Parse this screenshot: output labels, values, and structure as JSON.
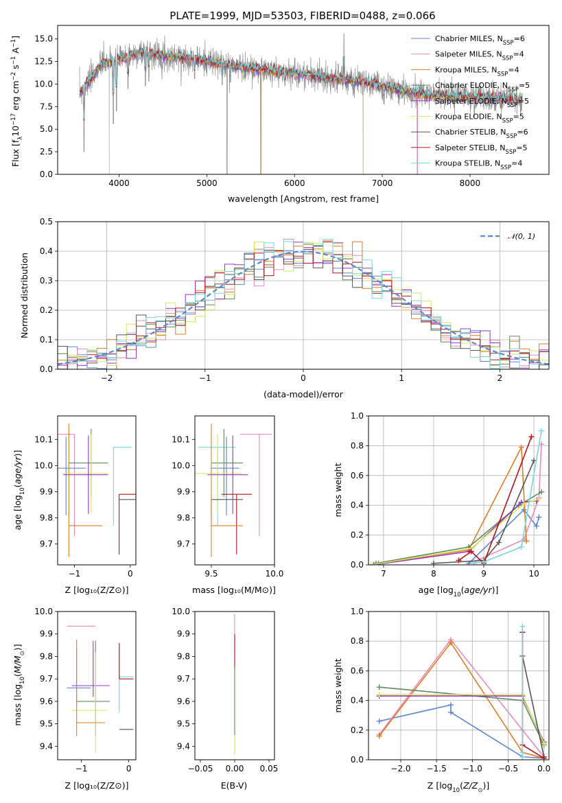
{
  "figure_title": "PLATE=1999, MJD=53503, FIBERID=0488, z=0.066",
  "colors": {
    "Chabrier MILES": "#5b86d6",
    "Salpeter MILES": "#e58bbd",
    "Kroupa MILES": "#e07b1f",
    "Chabrier ELODIE": "#5d8a5a",
    "Salpeter ELODIE": "#9a30c8",
    "Kroupa ELODIE": "#d8e65a",
    "Chabrier STELIB": "#555555",
    "Salpeter STELIB": "#b01418",
    "Kroupa STELIB": "#76d6df",
    "spectrum": "#8a8a8a",
    "normal": "#5b86d6"
  },
  "chart_data": [
    {
      "id": "spectrum",
      "type": "line",
      "title": "PLATE=1999, MJD=53503, FIBERID=0488, z=0.066",
      "xlabel": "wavelength [Angstrom, rest frame]",
      "ylabel": "Flux [fλ10⁻¹⁷ erg cm⁻² s⁻¹ A⁻¹]",
      "xlim": [
        3300,
        8900
      ],
      "ylim": [
        0,
        16.5
      ],
      "xticks": [
        4000,
        5000,
        6000,
        7000,
        8000
      ],
      "yticks": [
        0.0,
        2.5,
        5.0,
        7.5,
        10.0,
        12.5,
        15.0
      ],
      "legend_position": "top-right",
      "legend": [
        {
          "name": "Chabrier MILES",
          "label": "Chabrier MILES, N",
          "sub": "SSP",
          "tail": "=6"
        },
        {
          "name": "Salpeter MILES",
          "label": "Salpeter MILES, N",
          "sub": "SSP",
          "tail": "=4"
        },
        {
          "name": "Kroupa MILES",
          "label": "Kroupa MILES, N",
          "sub": "SSP",
          "tail": "=4"
        },
        {
          "name": "Chabrier ELODIE",
          "label": "Chabrier ELODIE, N",
          "sub": "SSP",
          "tail": "=5"
        },
        {
          "name": "Salpeter ELODIE",
          "label": "Salpeter ELODIE, N",
          "sub": "SSP",
          "tail": "=5"
        },
        {
          "name": "Kroupa ELODIE",
          "label": "Kroupa ELODIE, N",
          "sub": "SSP",
          "tail": "=5"
        },
        {
          "name": "Chabrier STELIB",
          "label": "Chabrier STELIB, N",
          "sub": "SSP",
          "tail": "=6"
        },
        {
          "name": "Salpeter STELIB",
          "label": "Salpeter STELIB, N",
          "sub": "SSP",
          "tail": "=5"
        },
        {
          "name": "Kroupa STELIB",
          "label": "Kroupa STELIB, N",
          "sub": "SSP",
          "tail": "=4"
        }
      ],
      "continuum": {
        "x": [
          3550,
          3650,
          3800,
          3950,
          4100,
          4300,
          4500,
          4800,
          5100,
          5400,
          5700,
          6000,
          6300,
          6600,
          6900,
          7200,
          7500,
          7800,
          8100,
          8400,
          8600
        ],
        "y": [
          9.0,
          10.2,
          12.3,
          12.5,
          13.1,
          13.6,
          13.1,
          12.9,
          12.3,
          11.9,
          11.5,
          11.2,
          10.8,
          10.4,
          10.0,
          9.3,
          8.8,
          8.6,
          8.5,
          8.4,
          8.3
        ]
      },
      "features": [
        {
          "x": 3600,
          "y": 2.5
        },
        {
          "x": 3890,
          "y": 0.0
        },
        {
          "x": 3935,
          "y": 5.6
        },
        {
          "x": 3970,
          "y": 7.0
        },
        {
          "x": 4102,
          "y": 9.5
        },
        {
          "x": 4300,
          "y": 9.8
        },
        {
          "x": 4340,
          "y": 10.3
        },
        {
          "x": 4861,
          "y": 10.6
        },
        {
          "x": 5175,
          "y": 9.9
        },
        {
          "x": 5230,
          "y": 0.0
        },
        {
          "x": 5270,
          "y": 10.2
        },
        {
          "x": 5615,
          "y": 0.0
        },
        {
          "x": 5890,
          "y": 9.8
        },
        {
          "x": 6563,
          "y": 15.6
        },
        {
          "x": 6783,
          "y": 0.0
        },
        {
          "x": 7400,
          "y": 0.0
        },
        {
          "x": 8500,
          "y": 7.9
        },
        {
          "x": 8545,
          "y": 8.0
        }
      ]
    },
    {
      "id": "residuals",
      "type": "histogram",
      "xlabel": "(data-model)/error",
      "ylabel": "Normed distribution",
      "xlim": [
        -2.5,
        2.5
      ],
      "ylim": [
        0,
        0.5
      ],
      "xticks": [
        -2,
        -1,
        0,
        1,
        2
      ],
      "yticks": [
        0.0,
        0.1,
        0.2,
        0.3,
        0.4,
        0.5
      ],
      "grid": true,
      "legend_position": "top-right",
      "normal_label": "𝒩(0, 1)",
      "bin_width": 0.1,
      "bin_start": -2.5,
      "series_order": [
        "Chabrier MILES",
        "Salpeter MILES",
        "Kroupa MILES",
        "Chabrier ELODIE",
        "Salpeter ELODIE",
        "Kroupa ELODIE",
        "Chabrier STELIB",
        "Salpeter STELIB",
        "Kroupa STELIB"
      ]
    },
    {
      "id": "age_vs_Z",
      "type": "errorbar",
      "xlabel": "Z [log₁₀(Z/Z⊙)]",
      "ylabel": "age  [log₁₀(age/yr)]",
      "xlim": [
        -1.3,
        0.1
      ],
      "ylim": [
        9.62,
        10.19
      ],
      "xticks": [
        -1,
        0
      ],
      "yticks": [
        9.7,
        9.8,
        9.9,
        10.0,
        10.1
      ],
      "points": [
        {
          "series": "Salpeter MILES",
          "x": -1.0,
          "y": 10.12,
          "xerr": [
            0.3,
            0.0
          ],
          "yerr": [
            0.39,
            0.0
          ]
        },
        {
          "series": "Kroupa STELIB",
          "x": -0.3,
          "y": 10.07,
          "xerr": [
            0.0,
            0.33
          ],
          "yerr": [
            0.3,
            0.0
          ]
        },
        {
          "series": "Chabrier ELODIE",
          "x": -0.7,
          "y": 10.01,
          "xerr": [
            0.4,
            0.3
          ],
          "yerr": [
            0.13,
            0.13
          ]
        },
        {
          "series": "Chabrier MILES",
          "x": -1.15,
          "y": 9.99,
          "xerr": [
            0.2,
            0.35
          ],
          "yerr": [
            0.18,
            0.12
          ]
        },
        {
          "series": "Kroupa ELODIE",
          "x": -0.7,
          "y": 9.97,
          "xerr": [
            0.5,
            0.3
          ],
          "yerr": [
            0.15,
            0.15
          ]
        },
        {
          "series": "Salpeter ELODIE",
          "x": -0.75,
          "y": 9.965,
          "xerr": [
            0.45,
            0.35
          ],
          "yerr": [
            0.15,
            0.15
          ]
        },
        {
          "series": "Salpeter STELIB",
          "x": -0.2,
          "y": 9.89,
          "xerr": [
            0.0,
            0.3
          ],
          "yerr": [
            0.23,
            0.0
          ]
        },
        {
          "series": "Chabrier STELIB",
          "x": -0.2,
          "y": 9.87,
          "xerr": [
            0.0,
            0.3
          ],
          "yerr": [
            0.21,
            0.0
          ]
        },
        {
          "series": "Kroupa MILES",
          "x": -1.1,
          "y": 9.77,
          "xerr": [
            0.0,
            0.6
          ],
          "yerr": [
            0.12,
            0.39
          ]
        }
      ]
    },
    {
      "id": "age_vs_mass",
      "type": "errorbar",
      "xlabel": "mass [log₁₀(M/M⊙)]",
      "ylabel": "",
      "xlim": [
        9.37,
        10.0
      ],
      "ylim": [
        9.62,
        10.19
      ],
      "xticks": [
        9.5,
        10.0
      ],
      "yticks": [
        9.7,
        9.8,
        9.9,
        10.0,
        10.1
      ],
      "points": [
        {
          "series": "Salpeter MILES",
          "x": 9.88,
          "y": 10.12,
          "xerr": [
            0.15,
            0.1
          ],
          "yerr": [
            0.39,
            0.0
          ]
        },
        {
          "series": "Kroupa STELIB",
          "x": 9.55,
          "y": 10.07,
          "xerr": [
            0.15,
            0.14
          ],
          "yerr": [
            0.3,
            0.0
          ]
        },
        {
          "series": "Chabrier ELODIE",
          "x": 9.6,
          "y": 10.01,
          "xerr": [
            0.1,
            0.15
          ],
          "yerr": [
            0.13,
            0.13
          ]
        },
        {
          "series": "Chabrier MILES",
          "x": 9.62,
          "y": 9.99,
          "xerr": [
            0.12,
            0.1
          ],
          "yerr": [
            0.18,
            0.12
          ]
        },
        {
          "series": "Kroupa ELODIE",
          "x": 9.55,
          "y": 9.97,
          "xerr": [
            0.19,
            0.19
          ],
          "yerr": [
            0.15,
            0.15
          ]
        },
        {
          "series": "Salpeter ELODIE",
          "x": 9.67,
          "y": 9.965,
          "xerr": [
            0.2,
            0.12
          ],
          "yerr": [
            0.15,
            0.15
          ]
        },
        {
          "series": "Salpeter STELIB",
          "x": 9.7,
          "y": 9.89,
          "xerr": [
            0.12,
            0.12
          ],
          "yerr": [
            0.23,
            0.0
          ]
        },
        {
          "series": "Chabrier STELIB",
          "x": 9.5,
          "y": 9.87,
          "xerr": [
            0.0,
            0.25
          ],
          "yerr": [
            0.07,
            0.0
          ]
        },
        {
          "series": "Kroupa MILES",
          "x": 9.5,
          "y": 9.77,
          "xerr": [
            0.0,
            0.25
          ],
          "yerr": [
            0.12,
            0.39
          ]
        }
      ]
    },
    {
      "id": "weight_vs_age",
      "type": "line",
      "xlabel": "age  [log₁₀(age/yr)]",
      "ylabel": "mass weight",
      "xlim": [
        6.7,
        10.3
      ],
      "ylim": [
        0,
        1.0
      ],
      "xticks": [
        7,
        8,
        9,
        10
      ],
      "yticks": [
        0.0,
        0.2,
        0.4,
        0.6,
        0.8,
        1.0
      ],
      "grid": true,
      "series": [
        {
          "name": "Chabrier MILES",
          "x": [
            8.7,
            9.8,
            10.05,
            10.1
          ],
          "y": [
            0.01,
            0.37,
            0.26,
            0.32
          ]
        },
        {
          "name": "Salpeter MILES",
          "x": [
            8.8,
            9.8,
            10.1,
            10.15
          ],
          "y": [
            0.02,
            0.17,
            0.45,
            0.81
          ]
        },
        {
          "name": "Kroupa MILES",
          "x": [
            6.9,
            8.7,
            9.75,
            9.85
          ],
          "y": [
            0.01,
            0.1,
            0.79,
            0.16
          ]
        },
        {
          "name": "Chabrier ELODIE",
          "x": [
            6.85,
            8.7,
            9.7,
            10.15
          ],
          "y": [
            0.01,
            0.12,
            0.4,
            0.49
          ]
        },
        {
          "name": "Salpeter ELODIE",
          "x": [
            6.8,
            8.7,
            9.75,
            10.05
          ],
          "y": [
            0.0,
            0.09,
            0.42,
            0.43
          ]
        },
        {
          "name": "Kroupa ELODIE",
          "x": [
            6.75,
            8.75,
            9.8,
            10.1
          ],
          "y": [
            0.0,
            0.11,
            0.41,
            0.44
          ]
        },
        {
          "name": "Chabrier STELIB",
          "x": [
            8.0,
            9.0,
            9.3,
            10.0
          ],
          "y": [
            0.01,
            0.03,
            0.15,
            0.7
          ]
        },
        {
          "name": "Salpeter STELIB",
          "x": [
            8.5,
            8.75,
            9.0,
            9.95
          ],
          "y": [
            0.03,
            0.09,
            0.01,
            0.86
          ]
        },
        {
          "name": "Kroupa STELIB",
          "x": [
            8.8,
            9.0,
            9.75,
            10.15
          ],
          "y": [
            0.01,
            0.02,
            0.12,
            0.9
          ]
        }
      ]
    },
    {
      "id": "mass_vs_Z",
      "type": "errorbar",
      "xlabel": "Z [log₁₀(Z/Z⊙)]",
      "ylabel": "mass [log₁₀(M/M⊙)]",
      "xlim": [
        -1.5,
        0.15
      ],
      "ylim": [
        9.34,
        10.0
      ],
      "xticks": [
        -1,
        0
      ],
      "yticks": [
        9.4,
        9.5,
        9.6,
        9.7,
        9.8,
        9.9,
        10.0
      ],
      "points": [
        {
          "series": "Salpeter MILES",
          "x": -1.0,
          "y": 9.935,
          "xerr": [
            0.3,
            0.3
          ],
          "yerr": [
            0.0,
            0.0
          ]
        },
        {
          "series": "Chabrier MILES",
          "x": -1.1,
          "y": 9.66,
          "xerr": [
            0.2,
            0.3
          ],
          "yerr": [
            0.08,
            0.18
          ]
        },
        {
          "series": "Kroupa STELIB",
          "x": -0.2,
          "y": 9.71,
          "xerr": [
            0.0,
            0.3
          ],
          "yerr": [
            0.16,
            0.14
          ]
        },
        {
          "series": "Salpeter STELIB",
          "x": -0.2,
          "y": 9.7,
          "xerr": [
            0.0,
            0.3
          ],
          "yerr": [
            0.0,
            0.16
          ]
        },
        {
          "series": "Salpeter ELODIE",
          "x": -0.75,
          "y": 9.67,
          "xerr": [
            0.45,
            0.35
          ],
          "yerr": [
            0.05,
            0.2
          ]
        },
        {
          "series": "Chabrier ELODIE",
          "x": -0.7,
          "y": 9.6,
          "xerr": [
            0.4,
            0.3
          ],
          "yerr": [
            0.15,
            0.27
          ]
        },
        {
          "series": "Kroupa ELODIE",
          "x": -0.7,
          "y": 9.56,
          "xerr": [
            0.5,
            0.25
          ],
          "yerr": [
            0.19,
            0.26
          ]
        },
        {
          "series": "Kroupa MILES",
          "x": -1.1,
          "y": 9.505,
          "xerr": [
            0.0,
            0.6
          ],
          "yerr": [
            0.06,
            0.37
          ]
        },
        {
          "series": "Chabrier STELIB",
          "x": -0.2,
          "y": 9.475,
          "xerr": [
            0.0,
            0.3
          ],
          "yerr": [
            0.0,
            0.0
          ]
        }
      ]
    },
    {
      "id": "mass_vs_ebv",
      "type": "errorbar",
      "xlabel": "E(B-V)",
      "ylabel": "",
      "xlim": [
        -0.058,
        0.058
      ],
      "ylim": [
        9.34,
        10.0
      ],
      "xticks": [
        -0.05,
        0.0,
        0.05
      ],
      "xtick_labels": [
        "−0.05",
        "0.00",
        "0.05"
      ],
      "yticks": [
        9.4,
        9.5,
        9.6,
        9.7,
        9.8,
        9.9,
        10.0
      ],
      "points": [
        {
          "series": "Salpeter MILES",
          "x": 0.0,
          "y": 9.8,
          "xerr": [
            0,
            0
          ],
          "yerr": [
            0.0,
            0.19
          ]
        },
        {
          "series": "Kroupa ELODIE",
          "x": 0.0,
          "y": 9.6,
          "xerr": [
            0,
            0
          ],
          "yerr": [
            0.24,
            0.2
          ]
        },
        {
          "series": "Salpeter STELIB",
          "x": 0.0,
          "y": 9.8,
          "xerr": [
            0,
            0
          ],
          "yerr": [
            0.05,
            0.1
          ]
        },
        {
          "series": "Chabrier ELODIE",
          "x": 0.0,
          "y": 9.65,
          "xerr": [
            0,
            0
          ],
          "yerr": [
            0.2,
            0.1
          ]
        }
      ]
    },
    {
      "id": "weight_vs_Z",
      "type": "line",
      "xlabel": "Z [log₁₀(Z/Z⊙)]",
      "ylabel": "mass weight",
      "xlim": [
        -2.45,
        0.07
      ],
      "ylim": [
        0,
        1.0
      ],
      "xticks": [
        -2.0,
        -1.5,
        -1.0,
        -0.5,
        0.0
      ],
      "xtick_labels": [
        "−2.0",
        "−1.5",
        "−1.0",
        "−0.5",
        "0.0"
      ],
      "yticks": [
        0.0,
        0.2,
        0.4,
        0.6,
        0.8,
        1.0
      ],
      "grid": true,
      "series": [
        {
          "name": "Chabrier MILES",
          "x": [
            -2.3,
            -1.3,
            -1.3,
            -0.3,
            0.0
          ],
          "y": [
            0.26,
            0.37,
            0.32,
            0.02,
            0.01
          ]
        },
        {
          "name": "Salpeter MILES",
          "x": [
            -2.3,
            -1.3,
            -0.3,
            0.0
          ],
          "y": [
            0.17,
            0.81,
            0.2,
            0.02
          ]
        },
        {
          "name": "Kroupa MILES",
          "x": [
            -2.3,
            -1.3,
            -0.3,
            0.0
          ],
          "y": [
            0.16,
            0.79,
            0.05,
            0.01
          ]
        },
        {
          "name": "Chabrier ELODIE",
          "x": [
            -2.3,
            -0.3,
            0.0
          ],
          "y": [
            0.49,
            0.4,
            0.1
          ]
        },
        {
          "name": "Salpeter ELODIE",
          "x": [
            -2.3,
            -0.3,
            0.0
          ],
          "y": [
            0.43,
            0.43,
            0.12
          ]
        },
        {
          "name": "Kroupa ELODIE",
          "x": [
            -2.3,
            -0.3,
            0.0
          ],
          "y": [
            0.44,
            0.44,
            0.11
          ]
        },
        {
          "name": "Chabrier STELIB",
          "x": [
            -0.3,
            -0.3,
            0.0
          ],
          "y": [
            0.86,
            0.7,
            0.02
          ]
        },
        {
          "name": "Salpeter STELIB",
          "x": [
            -0.3,
            -0.3,
            0.0
          ],
          "y": [
            0.86,
            0.1,
            0.01
          ]
        },
        {
          "name": "Kroupa STELIB",
          "x": [
            -0.3,
            -0.3,
            -0.3
          ],
          "y": [
            0.9,
            0.02,
            0.05
          ]
        }
      ]
    }
  ]
}
